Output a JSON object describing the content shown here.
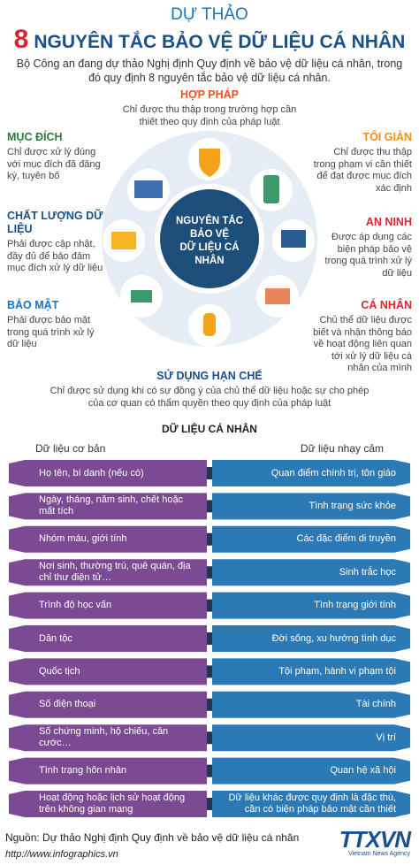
{
  "header": {
    "title_top": "DỰ THẢO",
    "number": "8",
    "title": "NGUYÊN TẮC BẢO VỆ DỮ LIỆU CÁ NHÂN",
    "intro": "Bộ Công an đang dự thảo Nghị định Quy định về bảo vệ dữ liệu cá nhân, trong đó quy định 8 nguyên tắc bảo vệ dữ liệu cá nhân."
  },
  "center_label": [
    "NGUYÊN TẮC",
    "BẢO VỆ",
    "DỮ LIỆU CÁ NHÂN"
  ],
  "principles": [
    {
      "title": "HỢP PHÁP",
      "text": "Chỉ được thu thập trong trường hợp cần thiết theo quy định của pháp luật"
    },
    {
      "title": "MỤC ĐÍCH",
      "text": "Chỉ được xử lý đúng với mục đích đã đăng ký, tuyên bố"
    },
    {
      "title": "TỐI GIẢN",
      "text": "Chỉ được thu thập trong phạm vi cần thiết để đạt được mục đích xác định"
    },
    {
      "title": "CHẤT LƯỢNG DỮ LIỆU",
      "text": "Phải được cập nhật, đầy đủ để bảo đảm mục đích xử lý dữ liệu"
    },
    {
      "title": "AN NINH",
      "text": "Được áp dụng các biện pháp bảo vệ trong quá trình xử lý dữ liệu"
    },
    {
      "title": "BẢO MẬT",
      "text": "Phải được bảo mật trong quá trình xử lý dữ liệu"
    },
    {
      "title": "CÁ NHÂN",
      "text": "Chủ thể dữ liệu được biết và nhận thông báo về hoạt động liên quan tới xử lý dữ liệu cá nhân của mình"
    },
    {
      "title": "SỬ DỤNG HẠN CHẾ",
      "text": "Chỉ được sử dụng khi có sự đồng ý của chủ thể dữ liệu hoặc sự cho phép của cơ quan có thẩm quyền theo quy định của pháp luật"
    }
  ],
  "personal_data": {
    "title": "DỮ LIỆU CÁ NHÂN",
    "basic": {
      "heading": "Dữ liệu cơ bản",
      "items": [
        "Họ tên, bí danh (nếu có)",
        "Ngày, tháng, năm sinh, chết hoặc mất tích",
        "Nhóm máu, giới tính",
        "Nơi sinh, thường trú, quê quán, địa chỉ thư điện tử…",
        "Trình độ học vấn",
        "Dân tộc",
        "Quốc tịch",
        "Số điện thoại",
        "Số chứng minh, hộ chiếu, căn cước…",
        "Tình trạng hôn nhân",
        "Hoạt động hoặc lịch sử hoạt động trên không gian mạng"
      ]
    },
    "sensitive": {
      "heading": "Dữ liệu nhạy cảm",
      "items": [
        "Quan điểm chính trị, tôn giáo",
        "Tình trạng sức khỏe",
        "Các đặc điểm di truyền",
        "Sinh trắc học",
        "Tình trạng giới tính",
        "Đời sống, xu hướng tình dục",
        "Tội phạm, hành vi phạm tội",
        "Tài chính",
        "Vị trí",
        "Quan hệ xã hội",
        "Dữ liệu khác được quy định là đặc thù, cần có biện pháp bảo mật cần thiết"
      ]
    }
  },
  "footer": {
    "source": "Nguồn: Dự thảo Nghị định Quy định về bảo vệ dữ liệu cá nhân",
    "url": "http://www.infographics.vn",
    "logo": "TTXVN",
    "logo_sub": "Vietnam News Agency"
  }
}
